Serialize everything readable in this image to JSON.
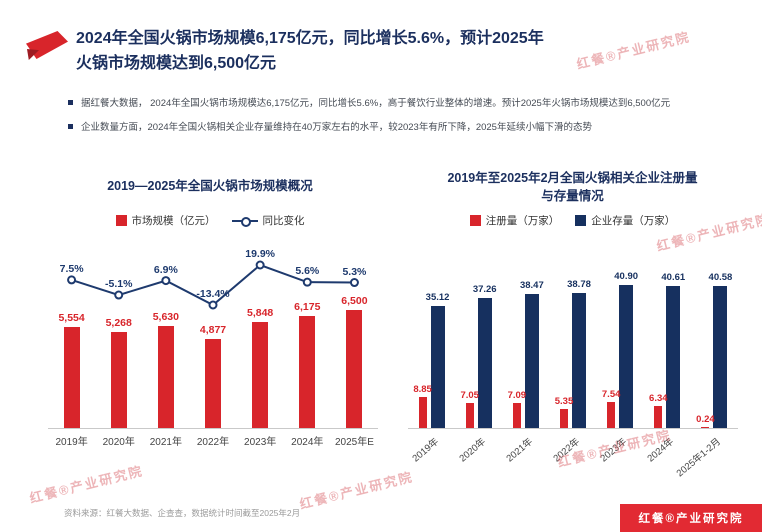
{
  "header": {
    "title_line1": "2024年全国火锅市场规模6,175亿元，同比增长5.6%，预计2025年",
    "title_line2": "火锅市场规模达到6,500亿元"
  },
  "bullets": [
    {
      "text": "据红餐大数据， 2024年全国火锅市场规模达6,175亿元，同比增长5.6%，高于餐饮行业整体的增速。预计2025年火锅市场规模达到6,500亿元"
    },
    {
      "text": "企业数量方面，2024年全国火锅相关企业存量维持在40万家左右的水平，较2023年有所下降，2025年延续小幅下滑的态势"
    }
  ],
  "watermark": {
    "text": "红餐®产业研究院"
  },
  "footer": {
    "source_note": "资料来源：红餐大数据、企查查，数据统计时间截至2025年2月",
    "brand_badge": "红餐®产业研究院"
  },
  "colors": {
    "red": "#D8252B",
    "navy": "#16305F",
    "title_navy": "#1B2F5E",
    "line_navy": "#1E3A6E"
  },
  "chart_data": [
    {
      "type": "bar+line",
      "title": "2019—2025年全国火锅市场规模概况",
      "categories": [
        "2019年",
        "2020年",
        "2021年",
        "2022年",
        "2023年",
        "2024年",
        "2025年E"
      ],
      "series": [
        {
          "name": "市场规模（亿元）",
          "type": "bar",
          "color": "#D8252B",
          "values": [
            5554,
            5268,
            5630,
            4877,
            5848,
            6175,
            6500
          ],
          "labels": [
            "5,554",
            "5,268",
            "5,630",
            "4,877",
            "5,848",
            "6,175",
            "6,500"
          ]
        },
        {
          "name": "同比变化",
          "type": "line",
          "color": "#1E3A6E",
          "values": [
            7.5,
            -5.1,
            6.9,
            -13.4,
            19.9,
            5.6,
            5.3
          ],
          "labels": [
            "7.5%",
            "-5.1%",
            "6.9%",
            "-13.4%",
            "19.9%",
            "5.6%",
            "5.3%"
          ]
        }
      ],
      "ylim_bar": [
        0,
        6500
      ],
      "ylim_line": [
        -13.4,
        19.9
      ],
      "legend_position": "top",
      "grid": false
    },
    {
      "type": "bar",
      "title": "2019年至2025年2月全国火锅相关企业注册量与存量情况",
      "title_lines": [
        "2019年至2025年2月全国火锅相关企业注册量",
        "与存量情况"
      ],
      "categories": [
        "2019年",
        "2020年",
        "2021年",
        "2022年",
        "2023年",
        "2024年",
        "2025年1-2月"
      ],
      "series": [
        {
          "name": "注册量（万家）",
          "color": "#D8252B",
          "values": [
            8.85,
            7.05,
            7.09,
            5.35,
            7.54,
            6.34,
            0.24
          ],
          "labels": [
            "8.85",
            "7.05",
            "7.09",
            "5.35",
            "7.54",
            "6.34",
            "0.24"
          ]
        },
        {
          "name": "企业存量（万家）",
          "color": "#16305F",
          "values": [
            35.12,
            37.26,
            38.47,
            38.78,
            40.9,
            40.61,
            40.58
          ],
          "labels": [
            "35.12",
            "37.26",
            "38.47",
            "38.78",
            "40.90",
            "40.61",
            "40.58"
          ]
        }
      ],
      "ylim": [
        0,
        41
      ],
      "legend_position": "top",
      "grid": false
    }
  ]
}
